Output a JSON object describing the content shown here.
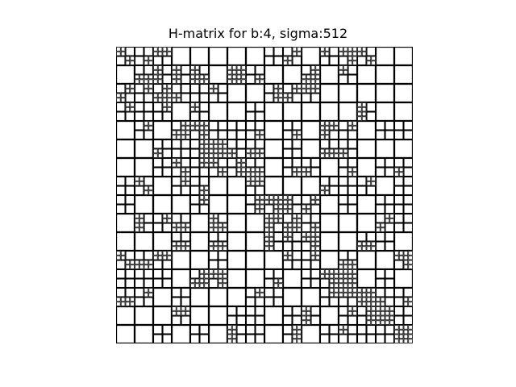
{
  "figure": {
    "title": "H-matrix for b:4, sigma:512"
  },
  "colors": {
    "background": "#ffffff",
    "block_border": "#000000",
    "block_fill": "#ffffff"
  },
  "matrix": {
    "block_size": 4,
    "sigma": 512,
    "displayed_rows": 92,
    "displayed_cols": 92,
    "description_tokens": [
      "hierarchical-block-partition",
      "black-block-borders",
      "white-background"
    ]
  }
}
